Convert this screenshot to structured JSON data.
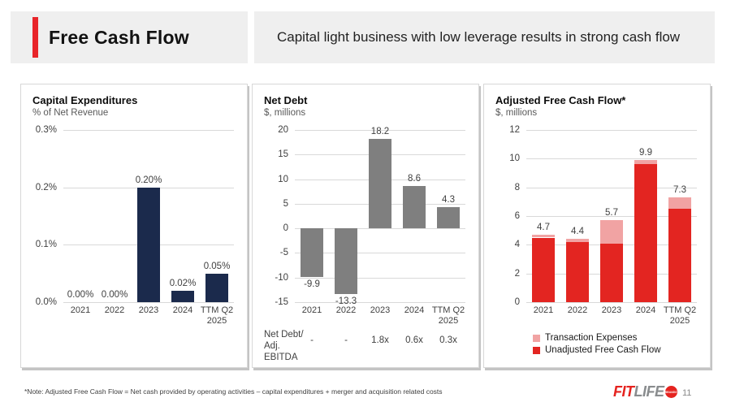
{
  "header": {
    "title": "Free Cash Flow",
    "subtitle": "Capital light business with low leverage results in strong cash flow"
  },
  "colors": {
    "accent_red": "#e8252a",
    "navy": "#1b2a4c",
    "gray_bar": "#7f7f7f",
    "red_bar": "#e32521",
    "pink_bar": "#f1a3a3",
    "header_bg": "#efefef",
    "gridline": "#d9d9d9",
    "logo_fit_red": "#e5231f",
    "logo_life_gray": "#898c8e"
  },
  "chart_data": [
    {
      "type": "bar",
      "title": "Capital Expenditures",
      "subtitle": "% of Net Revenue",
      "categories": [
        "2021",
        "2022",
        "2023",
        "2024",
        "TTM Q2 2025"
      ],
      "values": [
        0.0,
        0.0,
        0.2,
        0.02,
        0.05
      ],
      "value_labels": [
        "0.00%",
        "0.00%",
        "0.20%",
        "0.02%",
        "0.05%"
      ],
      "yticks": [
        0.3,
        0.2,
        0.1,
        0.0
      ],
      "ytick_labels": [
        "0.3%",
        "0.2%",
        "0.1%",
        "0.0%"
      ],
      "ylim": [
        0,
        0.3
      ],
      "bar_color": "#1b2a4c",
      "grid": true,
      "xlabel": "",
      "ylabel": "% of Net Revenue"
    },
    {
      "type": "bar",
      "title": "Net Debt",
      "subtitle": "$, millions",
      "categories": [
        "2021",
        "2022",
        "2023",
        "2024",
        "TTM Q2 2025"
      ],
      "values": [
        -9.9,
        -13.3,
        18.2,
        8.6,
        4.3
      ],
      "value_labels": [
        "-9.9",
        "-13.3",
        "18.2",
        "8.6",
        "4.3"
      ],
      "yticks": [
        20,
        15,
        10,
        5,
        0,
        -5,
        -10,
        -15
      ],
      "ytick_labels": [
        "20",
        "15",
        "10",
        "5",
        "0",
        "-5",
        "-10",
        "-15"
      ],
      "ylim": [
        -15,
        20
      ],
      "bar_color": "#7f7f7f",
      "grid": true,
      "xlabel": "",
      "ylabel": "$, millions",
      "ratio_row": {
        "label": "Net Debt/\nAdj.\nEBITDA",
        "values": [
          "-",
          "-",
          "1.8x",
          "0.6x",
          "0.3x"
        ]
      }
    },
    {
      "type": "stacked-bar",
      "title": "Adjusted Free Cash Flow*",
      "subtitle": "$, millions",
      "categories": [
        "2021",
        "2022",
        "2023",
        "2024",
        "TTM Q2 2025"
      ],
      "series": [
        {
          "name": "Unadjusted Free Cash Flow",
          "color": "#e32521",
          "values": [
            4.5,
            4.2,
            4.1,
            9.6,
            6.5
          ]
        },
        {
          "name": "Transaction Expenses",
          "color": "#f1a3a3",
          "values": [
            0.2,
            0.2,
            1.6,
            0.3,
            0.8
          ]
        }
      ],
      "totals": [
        "4.7",
        "4.4",
        "5.7",
        "9.9",
        "7.3"
      ],
      "yticks": [
        12,
        10,
        8,
        6,
        4,
        2,
        0
      ],
      "ytick_labels": [
        "12",
        "10",
        "8",
        "6",
        "4",
        "2",
        "0"
      ],
      "ylim": [
        0,
        12
      ],
      "grid": true,
      "xlabel": "",
      "ylabel": "$, millions",
      "legend": [
        {
          "label": "Transaction Expenses",
          "color": "#f1a3a3"
        },
        {
          "label": "Unadjusted Free Cash Flow",
          "color": "#e32521"
        }
      ],
      "legend_position": "bottom-left"
    }
  ],
  "footer": {
    "note": "*Note: Adjusted Free Cash Flow = Net cash provided by operating activities – capital expenditures + merger and acquisition related costs",
    "page_number": "11",
    "logo": {
      "fit": "FIT",
      "life": "LIFE",
      "badge": "BRANDS"
    }
  }
}
